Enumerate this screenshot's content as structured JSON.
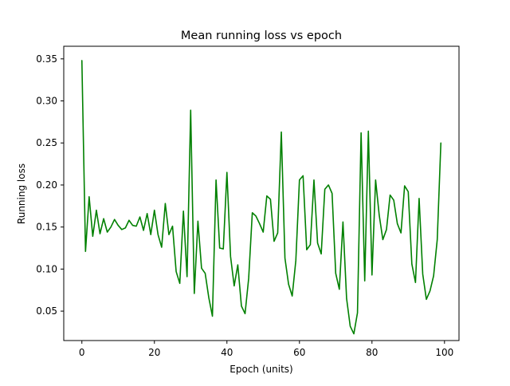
{
  "chart_data": {
    "type": "line",
    "title": "Mean running loss vs epoch",
    "xlabel": "Epoch (units)",
    "ylabel": "Running loss",
    "xlim": [
      -5,
      104
    ],
    "ylim": [
      0.015,
      0.365
    ],
    "x_ticks": [
      0,
      20,
      40,
      60,
      80,
      100
    ],
    "y_ticks": [
      0.05,
      0.1,
      0.15,
      0.2,
      0.25,
      0.3,
      0.35
    ],
    "x_tick_labels": [
      "0",
      "20",
      "40",
      "60",
      "80",
      "100"
    ],
    "y_tick_labels": [
      "0.05",
      "0.10",
      "0.15",
      "0.20",
      "0.25",
      "0.30",
      "0.35"
    ],
    "grid": false,
    "line_color": "#008000",
    "series": [
      {
        "x": [
          0,
          1,
          2,
          3,
          4,
          5,
          6,
          7,
          8,
          9,
          10,
          11,
          12,
          13,
          14,
          15,
          16,
          17,
          18,
          19,
          20,
          21,
          22,
          23,
          24,
          25,
          26,
          27,
          28,
          29,
          30,
          31,
          32,
          33,
          34,
          35,
          36,
          37,
          38,
          39,
          40,
          41,
          42,
          43,
          44,
          45,
          46,
          47,
          48,
          49,
          50,
          51,
          52,
          53,
          54,
          55,
          56,
          57,
          58,
          59,
          60,
          61,
          62,
          63,
          64,
          65,
          66,
          67,
          68,
          69,
          70,
          71,
          72,
          73,
          74,
          75,
          76,
          77,
          78,
          79,
          80,
          81,
          82,
          83,
          84,
          85,
          86,
          87,
          88,
          89,
          90,
          91,
          92,
          93,
          94,
          95,
          96,
          97,
          98,
          99
        ],
        "values": [
          0.348,
          0.121,
          0.186,
          0.139,
          0.17,
          0.142,
          0.16,
          0.144,
          0.15,
          0.159,
          0.152,
          0.147,
          0.149,
          0.158,
          0.152,
          0.151,
          0.162,
          0.146,
          0.166,
          0.141,
          0.17,
          0.141,
          0.126,
          0.178,
          0.141,
          0.151,
          0.097,
          0.083,
          0.169,
          0.091,
          0.289,
          0.071,
          0.157,
          0.101,
          0.095,
          0.066,
          0.044,
          0.206,
          0.125,
          0.124,
          0.215,
          0.115,
          0.08,
          0.105,
          0.056,
          0.047,
          0.089,
          0.167,
          0.163,
          0.154,
          0.144,
          0.187,
          0.183,
          0.133,
          0.143,
          0.263,
          0.113,
          0.082,
          0.068,
          0.11,
          0.206,
          0.211,
          0.123,
          0.129,
          0.206,
          0.131,
          0.118,
          0.195,
          0.2,
          0.19,
          0.095,
          0.076,
          0.156,
          0.065,
          0.032,
          0.023,
          0.048,
          0.262,
          0.086,
          0.264,
          0.093,
          0.206,
          0.164,
          0.135,
          0.147,
          0.188,
          0.182,
          0.154,
          0.143,
          0.199,
          0.192,
          0.106,
          0.084,
          0.184,
          0.094,
          0.064,
          0.074,
          0.092,
          0.135,
          0.25
        ]
      }
    ]
  }
}
